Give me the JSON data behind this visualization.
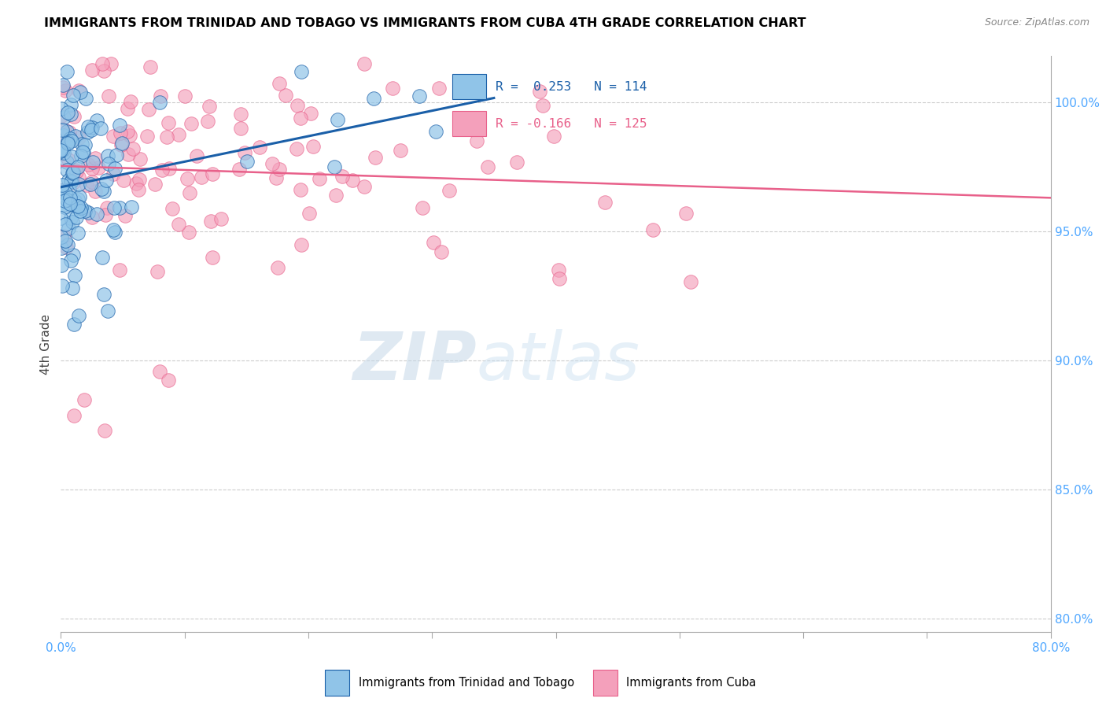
{
  "title": "IMMIGRANTS FROM TRINIDAD AND TOBAGO VS IMMIGRANTS FROM CUBA 4TH GRADE CORRELATION CHART",
  "source": "Source: ZipAtlas.com",
  "ylabel": "4th Grade",
  "ylabel_right_ticks": [
    80.0,
    85.0,
    90.0,
    95.0,
    100.0
  ],
  "xmin": 0.0,
  "xmax": 80.0,
  "ymin": 79.5,
  "ymax": 101.8,
  "color_blue": "#90c4e8",
  "color_pink": "#f4a0bb",
  "color_blue_line": "#1a5fa8",
  "color_pink_line": "#e8608a",
  "watermark_zip": "ZIP",
  "watermark_atlas": "atlas",
  "n_blue": 114,
  "n_pink": 125,
  "R_blue": 0.253,
  "R_pink": -0.166,
  "tick_color": "#4da6ff",
  "grid_color": "#cccccc",
  "title_fontsize": 11.5,
  "source_fontsize": 9,
  "legend_r1_text": "R =  0.253   N = 114",
  "legend_r2_text": "R = -0.166   N = 125"
}
